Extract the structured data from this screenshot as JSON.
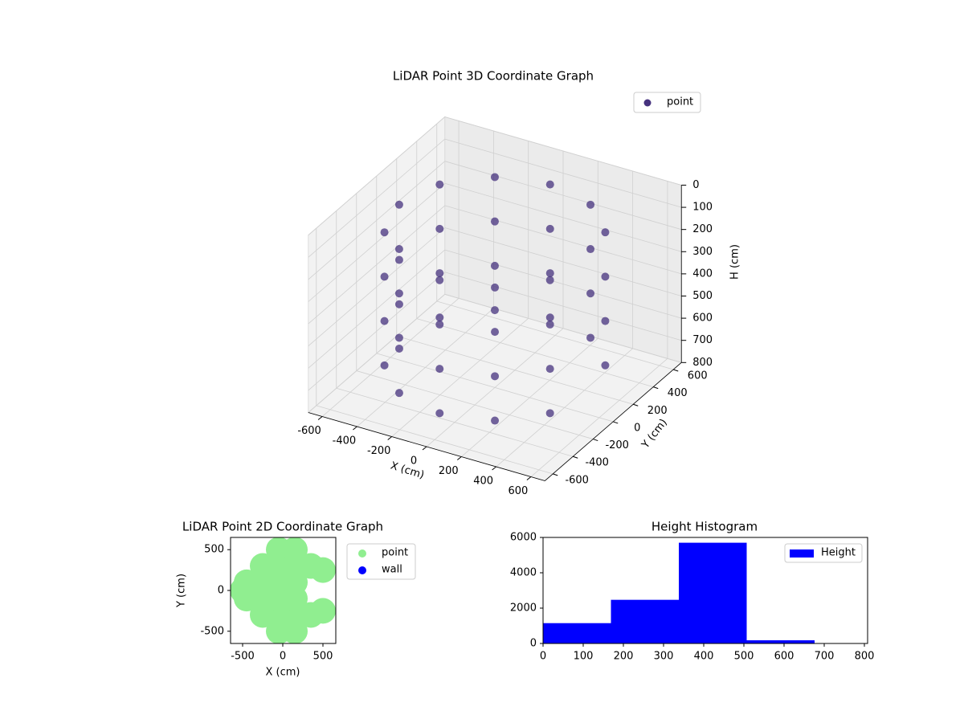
{
  "chart_data": [
    {
      "type": "scatter3d",
      "title": "LiDAR Point 3D Coordinate Graph",
      "xlabel": "X (cm)",
      "ylabel": "Y (cm)",
      "zlabel": "H (cm)",
      "xlim": [
        -680,
        680
      ],
      "ylim": [
        -680,
        680
      ],
      "zlim": [
        0,
        800
      ],
      "z_inverted": true,
      "xticks": [
        -600,
        -400,
        -200,
        0,
        200,
        400,
        600
      ],
      "yticks": [
        -600,
        -400,
        -200,
        0,
        200,
        400,
        600
      ],
      "zticks": [
        0,
        100,
        200,
        300,
        400,
        500,
        600,
        700,
        800
      ],
      "grid": true,
      "legend": "upper right",
      "series": [
        {
          "name": "point",
          "color": "#46327e",
          "x": [
            476,
            275,
            0,
            -275,
            -476,
            -550,
            -476,
            -275,
            0,
            275,
            476,
            476,
            275,
            0,
            -275,
            -476,
            -550,
            -476,
            -275,
            0,
            275,
            476,
            476,
            275,
            0,
            -275,
            -476,
            -550,
            -476,
            -275,
            0,
            275,
            476,
            476,
            275,
            0,
            -275,
            -476,
            -550,
            -476,
            -275,
            0,
            275,
            476
          ],
          "y": [
            275,
            476,
            550,
            476,
            275,
            0,
            -275,
            -476,
            -550,
            -476,
            -275,
            275,
            476,
            550,
            476,
            275,
            0,
            -275,
            -476,
            -550,
            -476,
            -275,
            275,
            476,
            550,
            476,
            275,
            0,
            -275,
            -476,
            -550,
            -476,
            -275,
            275,
            476,
            550,
            476,
            275,
            0,
            -275,
            -476,
            -550,
            -476,
            -275
          ],
          "z": [
            100,
            100,
            100,
            100,
            100,
            100,
            100,
            100,
            100,
            100,
            100,
            300,
            300,
            300,
            300,
            300,
            300,
            300,
            300,
            300,
            300,
            300,
            500,
            500,
            500,
            500,
            500,
            500,
            500,
            500,
            500,
            500,
            500,
            700,
            700,
            700,
            700,
            700,
            700,
            700,
            700,
            700,
            700,
            700
          ]
        }
      ]
    },
    {
      "type": "scatter",
      "title": "LiDAR Point 2D Coordinate Graph",
      "xlabel": "X (cm)",
      "ylabel": "Y (cm)",
      "xlim": [
        -650,
        660
      ],
      "ylim": [
        -650,
        650
      ],
      "xticks": [
        -500,
        0,
        500
      ],
      "yticks": [
        -500,
        0,
        500
      ],
      "legend": "outside right",
      "series": [
        {
          "name": "point",
          "color": "#90ee90",
          "x": [
            -500,
            -450,
            -450,
            -250,
            -250,
            -250,
            -250,
            -50,
            -50,
            -50,
            -50,
            -50,
            -50,
            150,
            150,
            150,
            150,
            150,
            150,
            350,
            350,
            500,
            500
          ],
          "y": [
            0,
            -100,
            100,
            -300,
            -100,
            100,
            300,
            -500,
            -300,
            -100,
            100,
            300,
            500,
            -500,
            -300,
            -100,
            100,
            300,
            500,
            -300,
            300,
            -250,
            250
          ]
        },
        {
          "name": "wall",
          "color": "#0000ff",
          "x": [],
          "y": []
        }
      ]
    },
    {
      "type": "histogram",
      "title": "Height Histogram",
      "label": "Height",
      "color": "#0000ff",
      "bins": [
        0,
        169,
        338,
        507,
        676,
        845
      ],
      "values": [
        1150,
        2470,
        5700,
        180,
        10
      ],
      "xlim": [
        0,
        808
      ],
      "ylim": [
        0,
        6000
      ],
      "xticks": [
        0,
        100,
        200,
        300,
        400,
        500,
        600,
        700,
        800
      ],
      "yticks": [
        0,
        2000,
        4000,
        6000
      ],
      "legend": "upper right"
    }
  ]
}
